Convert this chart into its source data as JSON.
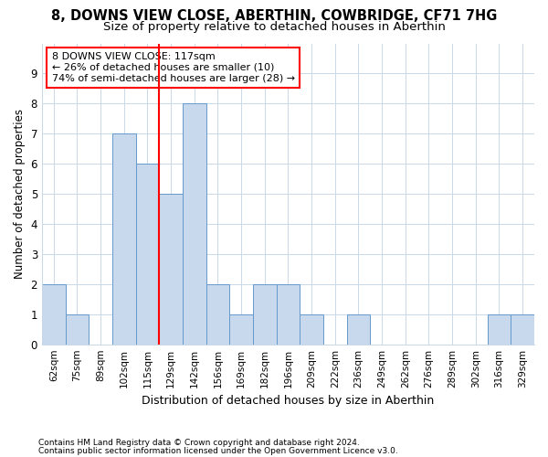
{
  "title1": "8, DOWNS VIEW CLOSE, ABERTHIN, COWBRIDGE, CF71 7HG",
  "title2": "Size of property relative to detached houses in Aberthin",
  "xlabel": "Distribution of detached houses by size in Aberthin",
  "ylabel": "Number of detached properties",
  "footnote1": "Contains HM Land Registry data © Crown copyright and database right 2024.",
  "footnote2": "Contains public sector information licensed under the Open Government Licence v3.0.",
  "bar_labels": [
    "62sqm",
    "75sqm",
    "89sqm",
    "102sqm",
    "115sqm",
    "129sqm",
    "142sqm",
    "156sqm",
    "169sqm",
    "182sqm",
    "196sqm",
    "209sqm",
    "222sqm",
    "236sqm",
    "249sqm",
    "262sqm",
    "276sqm",
    "289sqm",
    "302sqm",
    "316sqm",
    "329sqm"
  ],
  "bar_values": [
    2,
    1,
    0,
    7,
    6,
    5,
    8,
    2,
    1,
    2,
    2,
    1,
    0,
    1,
    0,
    0,
    0,
    0,
    0,
    1,
    1
  ],
  "bar_color": "#c9d9ed",
  "bar_edgecolor": "#6699cc",
  "grid_color": "#c8d8e8",
  "vline_x": 4.5,
  "vline_color": "red",
  "annotation_text": "8 DOWNS VIEW CLOSE: 117sqm\n← 26% of detached houses are smaller (10)\n74% of semi-detached houses are larger (28) →",
  "annotation_box_color": "white",
  "annotation_box_edgecolor": "red",
  "ylim": [
    0,
    10
  ],
  "yticks": [
    0,
    1,
    2,
    3,
    4,
    5,
    6,
    7,
    8,
    9
  ],
  "background_color": "white",
  "title1_fontsize": 10.5,
  "title2_fontsize": 9.5
}
